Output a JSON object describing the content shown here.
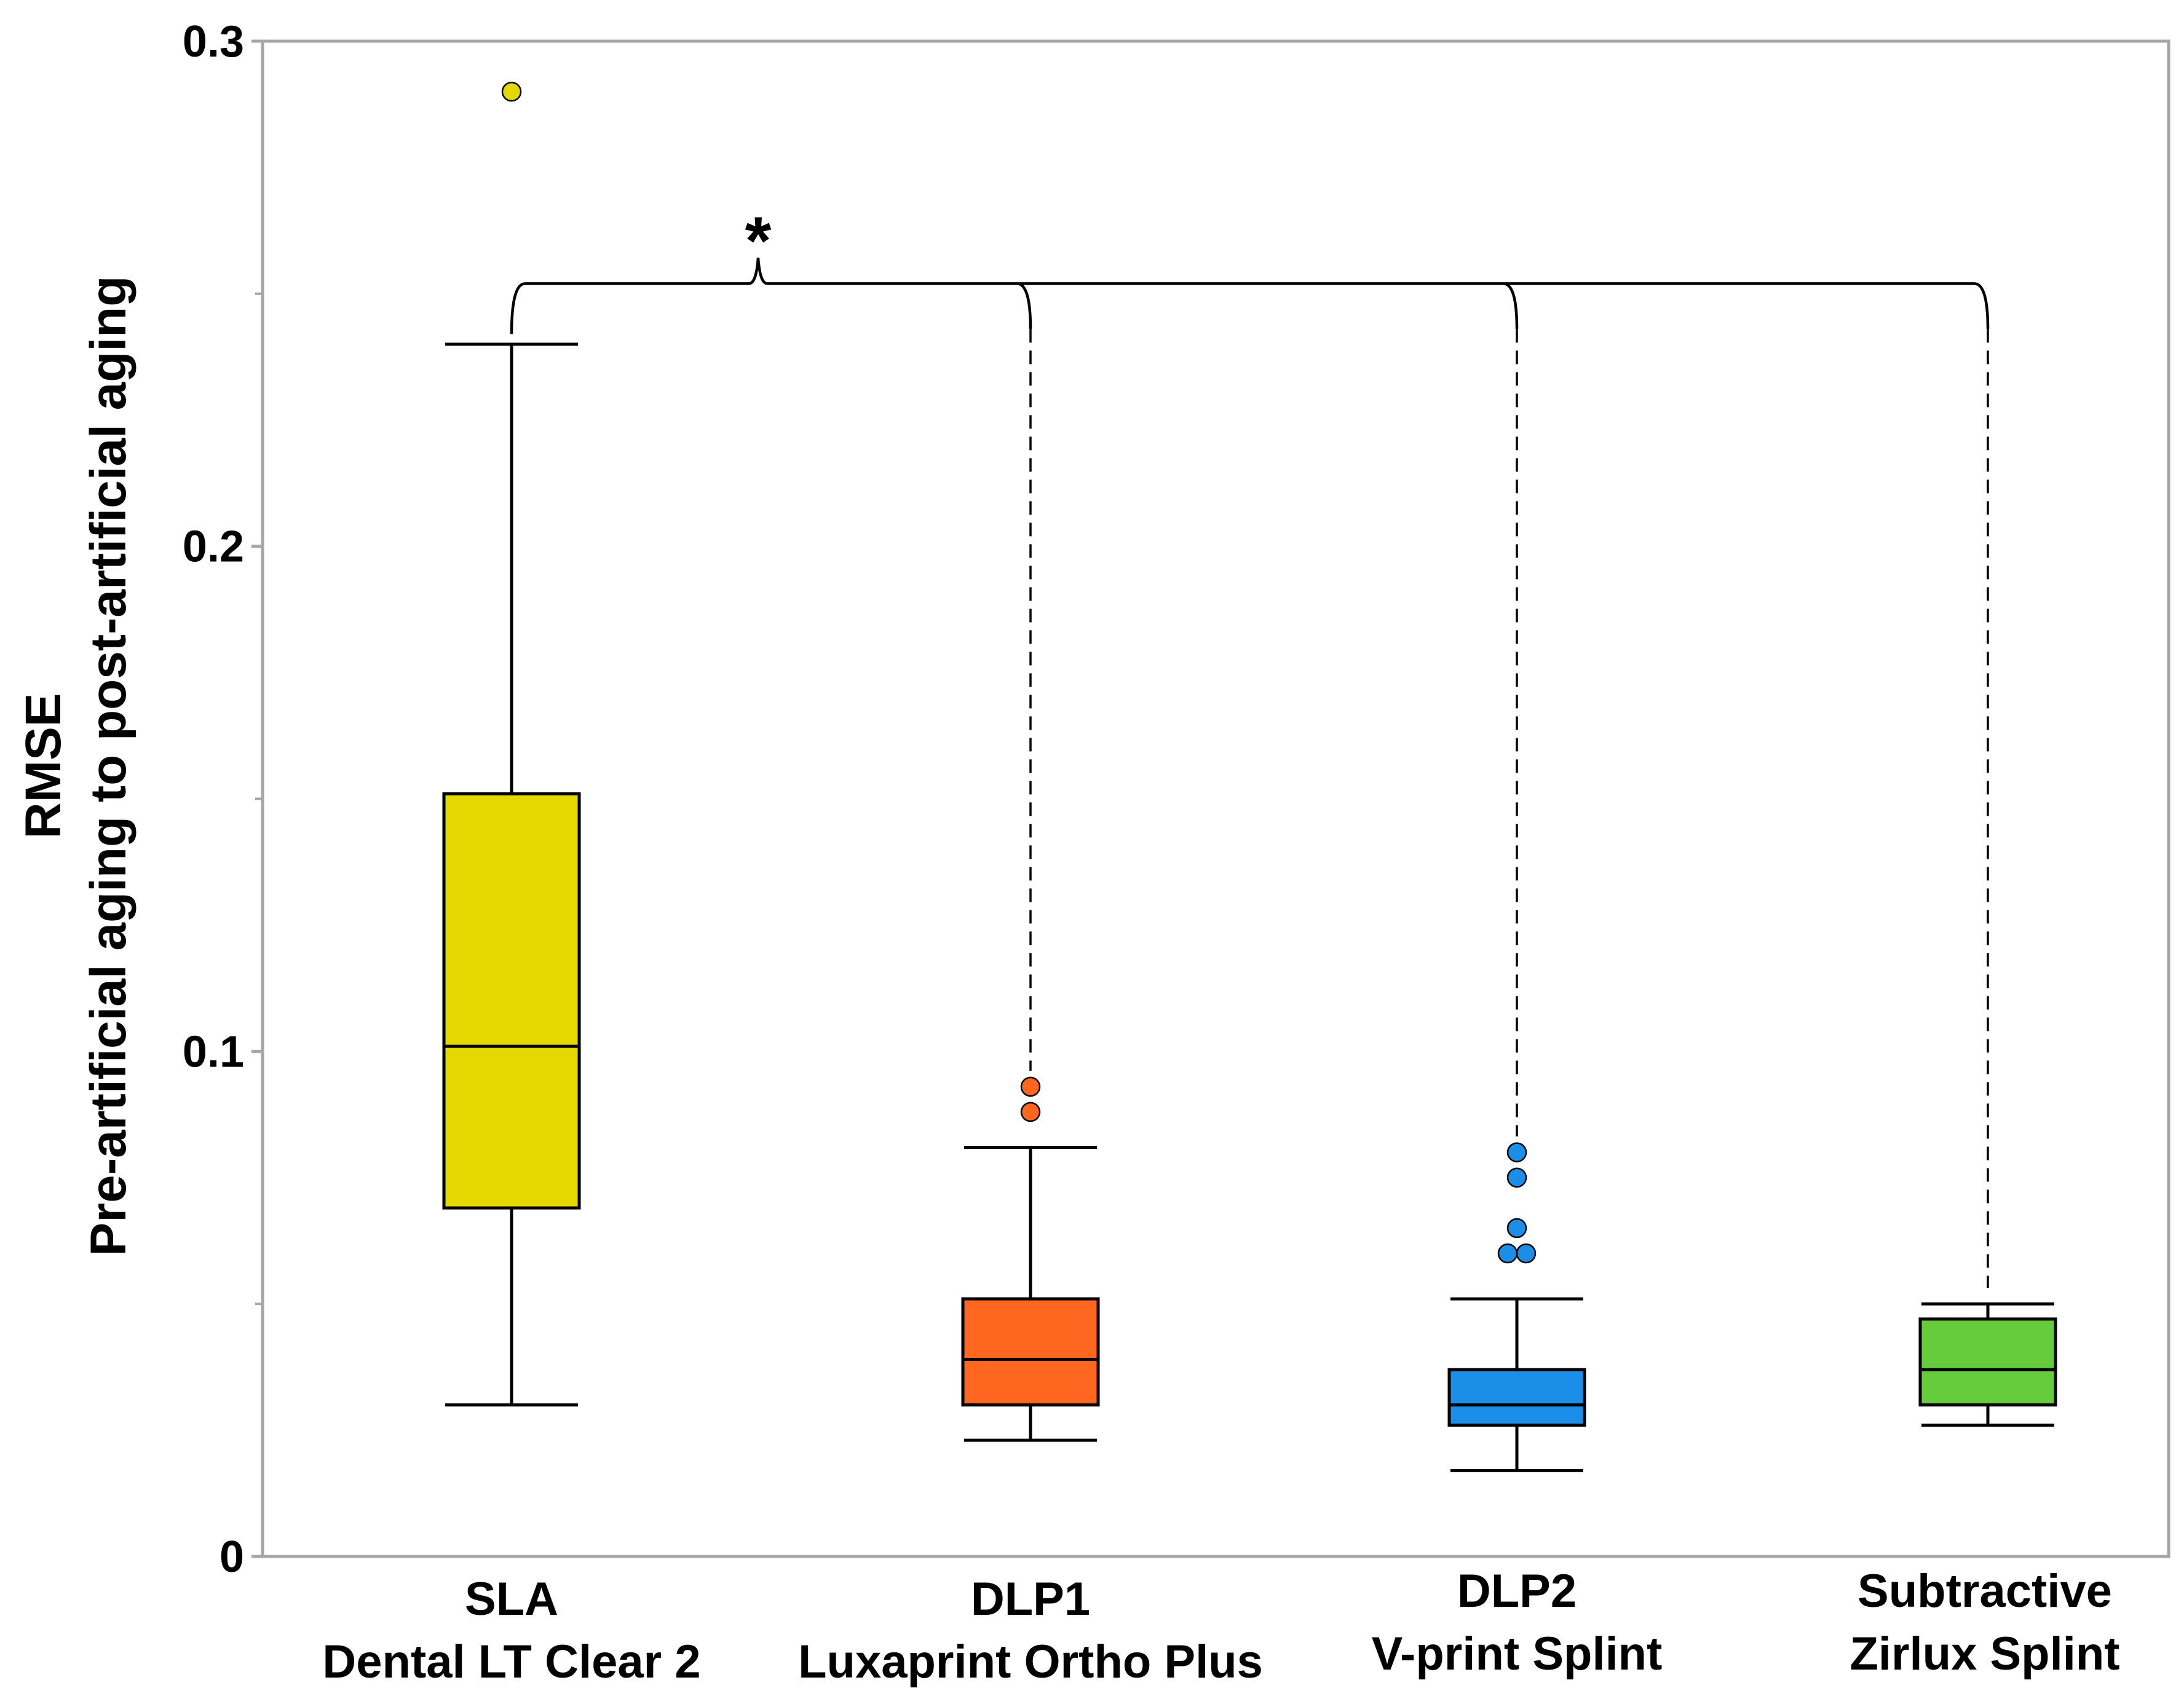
{
  "chart_data": {
    "type": "boxplot",
    "title": "",
    "xlabel": "",
    "ylabel_lines": [
      "RMSE",
      "Pre-artificial aging to post-artificial aging"
    ],
    "ylim": [
      0,
      0.3
    ],
    "y_ticks": [
      0,
      0.1,
      0.2,
      0.3
    ],
    "y_tick_labels": [
      "0",
      "0.1",
      "0.2",
      "0.3"
    ],
    "y_minor_ticks": [
      0.05,
      0.15,
      0.25
    ],
    "grid": false,
    "series": [
      {
        "name_lines": [
          "SLA",
          "Dental LT Clear 2"
        ],
        "color": "#e4d800",
        "whisker_low": 0.03,
        "q1": 0.069,
        "median": 0.101,
        "q3": 0.151,
        "whisker_high": 0.24,
        "outliers": [
          0.29
        ]
      },
      {
        "name_lines": [
          "DLP1",
          "Luxaprint Ortho Plus"
        ],
        "color": "#ff6620",
        "whisker_low": 0.023,
        "q1": 0.03,
        "median": 0.039,
        "q3": 0.051,
        "whisker_high": 0.081,
        "outliers": [
          0.088,
          0.093
        ]
      },
      {
        "name_lines": [
          "DLP2",
          "V-print Splint"
        ],
        "color": "#1b8fe8",
        "whisker_low": 0.017,
        "q1": 0.026,
        "median": 0.03,
        "q3": 0.037,
        "whisker_high": 0.051,
        "outliers": [
          0.06,
          0.06,
          0.065,
          0.075,
          0.08
        ]
      },
      {
        "name_lines": [
          "Subtractive",
          "Zirlux Splint"
        ],
        "color": "#66cc3c",
        "whisker_low": 0.026,
        "q1": 0.03,
        "median": 0.037,
        "q3": 0.047,
        "whisker_high": 0.05,
        "outliers": []
      }
    ],
    "annotations": [
      {
        "type": "significance-bracket",
        "label": "*",
        "level": 0.252
      }
    ]
  }
}
